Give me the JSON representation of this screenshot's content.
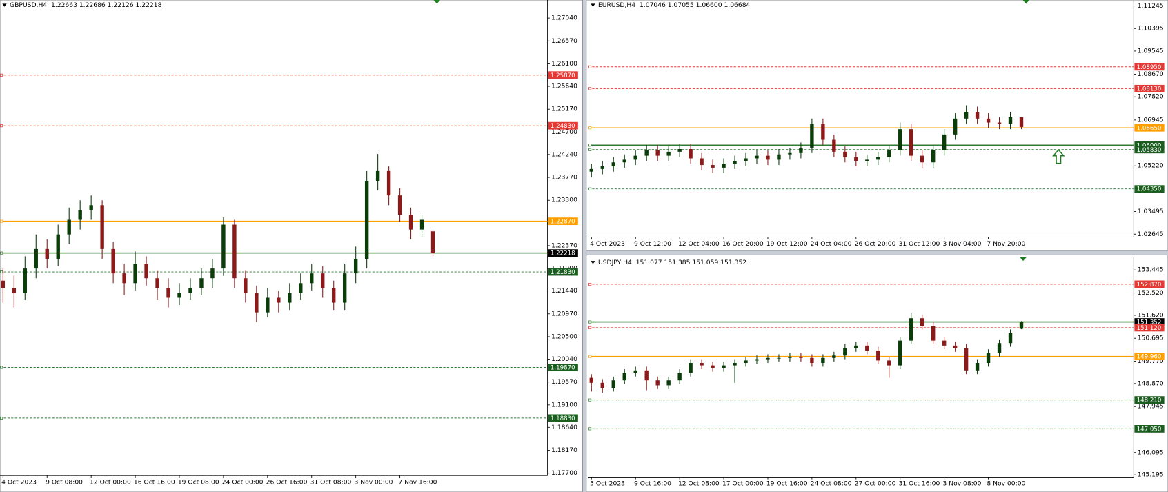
{
  "chart_data": [
    {
      "type": "candlestick",
      "title": "GBPUSD,H4  1.22663 1.22686 1.22126 1.22218",
      "up_color": "#0b3d0b",
      "down_color": "#8b1a1a",
      "categories": [
        "4 Oct 2023",
        null,
        null,
        null,
        "9 Oct 08:00",
        null,
        null,
        null,
        "12 Oct 00:00",
        null,
        null,
        null,
        "16 Oct 16:00",
        null,
        null,
        null,
        "19 Oct 08:00",
        null,
        null,
        null,
        "24 Oct 00:00",
        null,
        null,
        null,
        "26 Oct 16:00",
        null,
        null,
        null,
        "31 Oct 08:00",
        null,
        null,
        null,
        "3 Nov 00:00",
        null,
        null,
        null,
        "7 Nov 16:00",
        null,
        null,
        null
      ],
      "series": {
        "open": [
          1.2165,
          1.215,
          1.214,
          1.219,
          1.223,
          1.221,
          1.226,
          1.229,
          1.231,
          1.232,
          1.223,
          1.218,
          1.216,
          1.22,
          1.217,
          1.215,
          1.213,
          1.214,
          1.215,
          1.217,
          1.219,
          1.228,
          1.217,
          1.214,
          1.21,
          1.213,
          1.212,
          1.214,
          1.216,
          1.218,
          1.215,
          1.212,
          1.218,
          1.221,
          1.237,
          1.239,
          1.234,
          1.23,
          1.227,
          1.22663
        ],
        "high": [
          1.219,
          1.2175,
          1.2215,
          1.226,
          1.225,
          1.228,
          1.2315,
          1.233,
          1.234,
          1.233,
          1.2245,
          1.22,
          1.2225,
          1.2215,
          1.2185,
          1.217,
          1.216,
          1.217,
          1.219,
          1.221,
          1.2295,
          1.229,
          1.2185,
          1.2155,
          1.215,
          1.2145,
          1.216,
          1.218,
          1.22,
          1.2195,
          1.2165,
          1.22,
          1.2235,
          1.239,
          1.2425,
          1.24,
          1.2355,
          1.2315,
          1.23,
          1.22686
        ],
        "low": [
          1.212,
          1.211,
          1.2125,
          1.217,
          1.219,
          1.2195,
          1.224,
          1.227,
          1.229,
          1.221,
          1.216,
          1.2135,
          1.2145,
          1.2155,
          1.2125,
          1.211,
          1.2115,
          1.2125,
          1.2135,
          1.215,
          1.2175,
          1.215,
          1.212,
          1.208,
          1.209,
          1.21,
          1.2105,
          1.2125,
          1.2145,
          1.213,
          1.2105,
          1.2105,
          1.216,
          1.219,
          1.235,
          1.232,
          1.2285,
          1.225,
          1.2255,
          1.22126
        ],
        "close": [
          1.215,
          1.214,
          1.219,
          1.223,
          1.221,
          1.226,
          1.229,
          1.231,
          1.232,
          1.223,
          1.218,
          1.216,
          1.22,
          1.217,
          1.215,
          1.213,
          1.214,
          1.215,
          1.217,
          1.219,
          1.228,
          1.217,
          1.214,
          1.21,
          1.213,
          1.212,
          1.214,
          1.216,
          1.218,
          1.215,
          1.212,
          1.218,
          1.221,
          1.237,
          1.239,
          1.234,
          1.23,
          1.227,
          1.229,
          1.22218
        ]
      },
      "ylim": [
        1.1765,
        1.2741
      ],
      "yticks": [
        {
          "value": 1.2704,
          "label": "1.27040"
        },
        {
          "value": 1.2657,
          "label": "1.26570"
        },
        {
          "value": 1.261,
          "label": "1.26100"
        },
        {
          "value": 1.2564,
          "label": "1.25640"
        },
        {
          "value": 1.2517,
          "label": "1.25170"
        },
        {
          "value": 1.247,
          "label": "1.24700"
        },
        {
          "value": 1.2424,
          "label": "1.24240"
        },
        {
          "value": 1.2377,
          "label": "1.23770"
        },
        {
          "value": 1.233,
          "label": "1.23300"
        },
        {
          "value": 1.2237,
          "label": "1.22370"
        },
        {
          "value": 1.219,
          "label": "1.21900"
        },
        {
          "value": 1.2144,
          "label": "1.21440"
        },
        {
          "value": 1.2097,
          "label": "1.20970"
        },
        {
          "value": 1.205,
          "label": "1.20500"
        },
        {
          "value": 1.2004,
          "label": "1.20040"
        },
        {
          "value": 1.1957,
          "label": "1.19570"
        },
        {
          "value": 1.191,
          "label": "1.19100"
        },
        {
          "value": 1.1864,
          "label": "1.18640"
        },
        {
          "value": 1.1817,
          "label": "1.18170"
        },
        {
          "value": 1.177,
          "label": "1.17700"
        }
      ],
      "levels": [
        {
          "value": 1.2587,
          "label": "1.25870",
          "color": "#e53935",
          "line_style": "dashed",
          "tag_color": "#e53935"
        },
        {
          "value": 1.2483,
          "label": "1.24830",
          "color": "#e53935",
          "line_style": "dashed",
          "tag_color": "#e53935"
        },
        {
          "value": 1.2287,
          "label": "1.22870",
          "color": "#ffa000",
          "line_style": "solid",
          "tag_color": "#ffa000"
        },
        {
          "value": 1.22218,
          "label": "1.22218",
          "color": "#2e7d32",
          "line_style": "solid",
          "tag_color": "#000000"
        },
        {
          "value": 1.2183,
          "label": "1.21830",
          "color": "#2e7d32",
          "line_style": "dashed",
          "tag_color": "#1b5e20"
        },
        {
          "value": 1.1987,
          "label": "1.19870",
          "color": "#2e7d32",
          "line_style": "dashed",
          "tag_color": "#1b5e20"
        },
        {
          "value": 1.1883,
          "label": "1.18830",
          "color": "#2e7d32",
          "line_style": "dashed",
          "tag_color": "#1b5e20"
        }
      ]
    },
    {
      "type": "candlestick",
      "title": "EURUSD,H4  1.07046 1.07055 1.06600 1.06684",
      "up_color": "#0b3d0b",
      "down_color": "#8b1a1a",
      "categories": [
        "4 Oct 2023",
        null,
        null,
        null,
        "9 Oct 12:00",
        null,
        null,
        null,
        "12 Oct 04:00",
        null,
        null,
        null,
        "16 Oct 20:00",
        null,
        null,
        null,
        "19 Oct 12:00",
        null,
        null,
        null,
        "24 Oct 04:00",
        null,
        null,
        null,
        "26 Oct 20:00",
        null,
        null,
        null,
        "31 Oct 12:00",
        null,
        null,
        null,
        "3 Nov 04:00",
        null,
        null,
        null,
        "7 Nov 20:00",
        null,
        null,
        null
      ],
      "series": {
        "open": [
          1.05,
          1.051,
          1.052,
          1.0535,
          1.0545,
          1.056,
          1.058,
          1.056,
          1.0575,
          1.0585,
          1.055,
          1.0525,
          1.0515,
          1.053,
          1.054,
          1.055,
          1.056,
          1.0545,
          1.0565,
          1.057,
          1.059,
          1.068,
          1.062,
          1.0575,
          1.0555,
          1.054,
          1.0545,
          1.0555,
          1.058,
          1.066,
          1.056,
          1.0535,
          1.058,
          1.064,
          1.07,
          1.0725,
          1.07,
          1.0685,
          1.068,
          1.07046
        ],
        "high": [
          1.053,
          1.054,
          1.0555,
          1.0565,
          1.058,
          1.06,
          1.06,
          1.0595,
          1.0605,
          1.0605,
          1.057,
          1.0545,
          1.055,
          1.056,
          1.057,
          1.058,
          1.058,
          1.0585,
          1.059,
          1.061,
          1.07,
          1.07,
          1.064,
          1.0595,
          1.0575,
          1.0565,
          1.0575,
          1.06,
          1.0685,
          1.068,
          1.058,
          1.06,
          1.066,
          1.072,
          1.075,
          1.0745,
          1.072,
          1.0705,
          1.0725,
          1.07055
        ],
        "low": [
          1.048,
          1.049,
          1.05,
          1.0515,
          1.0525,
          1.054,
          1.054,
          1.054,
          1.0555,
          1.053,
          1.0505,
          1.0495,
          1.0495,
          1.051,
          1.052,
          1.053,
          1.0525,
          1.0525,
          1.0545,
          1.055,
          1.057,
          1.06,
          1.0555,
          1.0535,
          1.052,
          1.052,
          1.0525,
          1.0535,
          1.056,
          1.054,
          1.0515,
          1.0515,
          1.056,
          1.062,
          1.068,
          1.068,
          1.0665,
          1.066,
          1.066,
          1.066
        ],
        "close": [
          1.051,
          1.052,
          1.0535,
          1.0545,
          1.056,
          1.058,
          1.056,
          1.0575,
          1.0585,
          1.055,
          1.0525,
          1.0515,
          1.053,
          1.054,
          1.055,
          1.056,
          1.0545,
          1.0565,
          1.057,
          1.059,
          1.068,
          1.062,
          1.0575,
          1.0555,
          1.054,
          1.0545,
          1.0555,
          1.058,
          1.066,
          1.056,
          1.0535,
          1.058,
          1.064,
          1.07,
          1.0725,
          1.07,
          1.0685,
          1.068,
          1.0705,
          1.06684
        ]
      },
      "ylim": [
        1.02534,
        1.11467
      ],
      "yticks": [
        {
          "value": 1.11245,
          "label": "1.11245"
        },
        {
          "value": 1.10395,
          "label": "1.10395"
        },
        {
          "value": 1.09545,
          "label": "1.09545"
        },
        {
          "value": 1.0867,
          "label": "1.08670"
        },
        {
          "value": 1.0782,
          "label": "1.07820"
        },
        {
          "value": 1.06945,
          "label": "1.06945"
        },
        {
          "value": 1.0522,
          "label": "1.05220"
        },
        {
          "value": 1.03495,
          "label": "1.03495"
        },
        {
          "value": 1.02645,
          "label": "1.02645"
        }
      ],
      "levels": [
        {
          "value": 1.0895,
          "label": "1.08950",
          "color": "#e53935",
          "line_style": "dashed",
          "tag_color": "#e53935"
        },
        {
          "value": 1.0813,
          "label": "1.08130",
          "color": "#e53935",
          "line_style": "dashed",
          "tag_color": "#e53935"
        },
        {
          "value": 1.0665,
          "label": "1.06650",
          "color": "#ffa000",
          "line_style": "solid",
          "tag_color": "#ffa000"
        },
        {
          "value": 1.06,
          "label": "1.06000",
          "color": "#2e7d32",
          "line_style": "solid",
          "tag_color": "#1b5e20"
        },
        {
          "value": 1.0583,
          "label": "1.05830",
          "color": "#2e7d32",
          "line_style": "dashed",
          "tag_color": "#1b5e20"
        },
        {
          "value": 1.0435,
          "label": "1.04350",
          "color": "#2e7d32",
          "line_style": "dashed",
          "tag_color": "#1b5e20"
        }
      ]
    },
    {
      "type": "candlestick",
      "title": "USDJPY,H4  151.077 151.385 151.059 151.352",
      "up_color": "#0b3d0b",
      "down_color": "#8b1a1a",
      "categories": [
        "5 Oct 2023",
        null,
        null,
        null,
        "9 Oct 16:00",
        null,
        null,
        null,
        "12 Oct 08:00",
        null,
        null,
        null,
        "17 Oct 00:00",
        null,
        null,
        null,
        "19 Oct 16:00",
        null,
        null,
        null,
        "24 Oct 08:00",
        null,
        null,
        null,
        "27 Oct 00:00",
        null,
        null,
        null,
        "31 Oct 16:00",
        null,
        null,
        null,
        "3 Nov 08:00",
        null,
        null,
        null,
        "8 Nov 00:00",
        null,
        null,
        null
      ],
      "series": {
        "open": [
          149.1,
          148.9,
          148.7,
          149.0,
          149.3,
          149.4,
          149.0,
          148.8,
          149.0,
          149.3,
          149.7,
          149.6,
          149.5,
          149.6,
          149.7,
          149.8,
          149.85,
          149.9,
          149.9,
          149.95,
          149.9,
          149.7,
          149.9,
          150.0,
          150.3,
          150.4,
          150.2,
          149.8,
          149.6,
          150.6,
          151.5,
          151.2,
          150.6,
          150.4,
          150.3,
          149.4,
          149.7,
          150.1,
          150.5,
          151.077
        ],
        "high": [
          149.25,
          149.05,
          149.15,
          149.45,
          149.55,
          149.55,
          149.15,
          149.15,
          149.45,
          149.85,
          149.85,
          149.75,
          149.75,
          149.85,
          149.95,
          150.0,
          150.05,
          150.05,
          150.1,
          150.1,
          150.05,
          150.05,
          150.15,
          150.45,
          150.55,
          150.55,
          150.35,
          149.95,
          150.75,
          151.7,
          151.65,
          151.35,
          150.75,
          150.55,
          150.45,
          149.85,
          150.25,
          150.65,
          151.05,
          151.385
        ],
        "low": [
          148.55,
          148.5,
          148.55,
          148.85,
          149.15,
          148.6,
          148.65,
          148.65,
          148.85,
          149.15,
          149.45,
          149.35,
          149.35,
          148.9,
          149.55,
          149.65,
          149.7,
          149.75,
          149.75,
          149.75,
          149.55,
          149.55,
          149.75,
          149.85,
          150.15,
          150.05,
          149.65,
          149.1,
          149.45,
          150.45,
          151.05,
          150.45,
          150.25,
          150.15,
          149.25,
          149.25,
          149.55,
          149.95,
          150.35,
          151.059
        ],
        "close": [
          148.9,
          148.7,
          149.0,
          149.3,
          149.4,
          149.0,
          148.8,
          149.0,
          149.3,
          149.7,
          149.6,
          149.5,
          149.6,
          149.7,
          149.8,
          149.85,
          149.9,
          149.9,
          149.95,
          149.9,
          149.7,
          149.9,
          150.0,
          150.3,
          150.4,
          150.2,
          149.8,
          149.6,
          150.6,
          151.5,
          151.2,
          150.6,
          150.4,
          150.3,
          149.4,
          149.7,
          150.1,
          150.5,
          150.9,
          151.352
        ]
      },
      "ylim": [
        145.105,
        153.96
      ],
      "yticks": [
        153.445,
        {
          "value": 152.52,
          "label": "152.520"
        },
        {
          "value": 151.62,
          "label": "151.620"
        },
        150.695,
        {
          "value": 149.77,
          "label": "149.770"
        },
        {
          "value": 148.87,
          "label": "148.870"
        },
        147.945,
        146.095,
        145.195
      ],
      "levels": [
        {
          "value": 152.87,
          "label": "152.870",
          "color": "#e53935",
          "line_style": "dashed",
          "tag_color": "#e53935"
        },
        {
          "value": 151.352,
          "label": "151.352",
          "color": "#2e7d32",
          "line_style": "solid",
          "tag_color": "#000000"
        },
        {
          "value": 151.12,
          "label": "151.120",
          "color": "#e53935",
          "line_style": "dashed",
          "tag_color": "#e53935"
        },
        {
          "value": 149.96,
          "label": "149.960",
          "color": "#ffa000",
          "line_style": "solid",
          "tag_color": "#ffa000"
        },
        {
          "value": 148.21,
          "label": "148.210",
          "color": "#2e7d32",
          "line_style": "dashed",
          "tag_color": "#1b5e20"
        },
        {
          "value": 147.05,
          "label": "147.050",
          "color": "#2e7d32",
          "line_style": "dashed",
          "tag_color": "#1b5e20"
        }
      ]
    }
  ]
}
